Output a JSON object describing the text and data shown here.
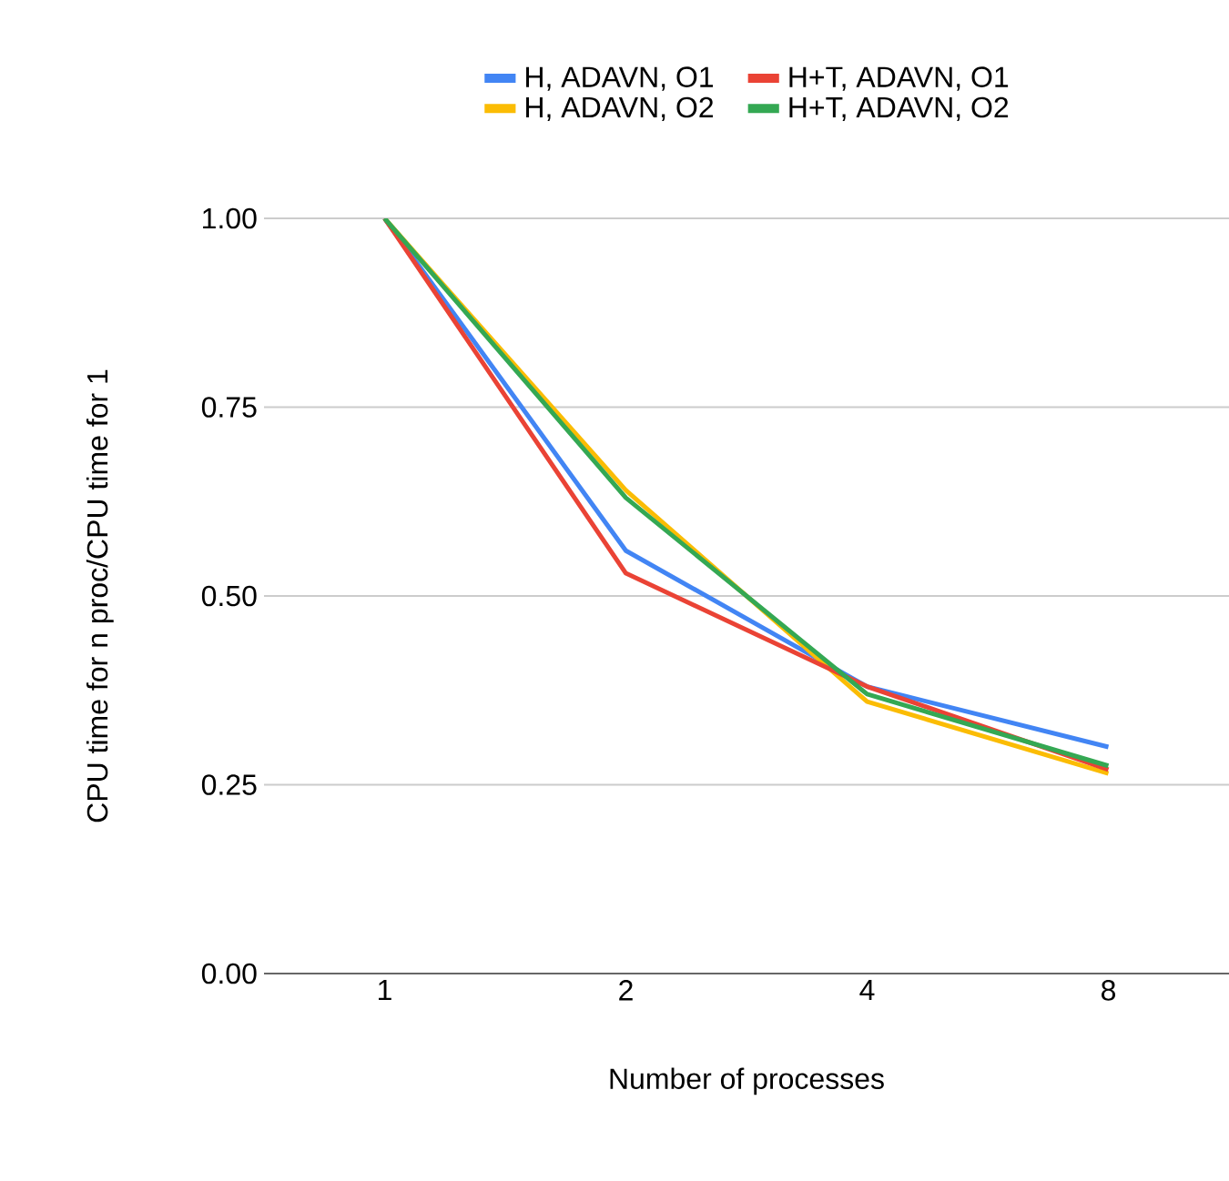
{
  "chart_data": {
    "type": "line",
    "xlabel": "Number of processes",
    "ylabel": "CPU time for n proc/CPU time for 1",
    "categories": [
      "1",
      "2",
      "4",
      "8"
    ],
    "series": [
      {
        "name": "H, ADAVN, O1",
        "color": "#4285f4",
        "values": [
          1.0,
          0.56,
          0.38,
          0.3
        ]
      },
      {
        "name": "H, ADAVN, O2",
        "color": "#fbbc04",
        "values": [
          1.0,
          0.64,
          0.36,
          0.265
        ]
      },
      {
        "name": "H+T, ADAVN, O1",
        "color": "#ea4335",
        "values": [
          1.0,
          0.53,
          0.38,
          0.27
        ]
      },
      {
        "name": "H+T, ADAVN, O2",
        "color": "#34a853",
        "values": [
          1.0,
          0.63,
          0.37,
          0.275
        ]
      }
    ],
    "ylim": [
      0,
      1.0
    ],
    "yticks": [
      {
        "value": 0,
        "label": "0.00"
      },
      {
        "value": 0.25,
        "label": "0.25"
      },
      {
        "value": 0.5,
        "label": "0.50"
      },
      {
        "value": 0.75,
        "label": "0.75"
      },
      {
        "value": 1.0,
        "label": "1.00"
      }
    ],
    "grid": "y",
    "legend": "top",
    "marker": "none",
    "line_style": "solid"
  }
}
